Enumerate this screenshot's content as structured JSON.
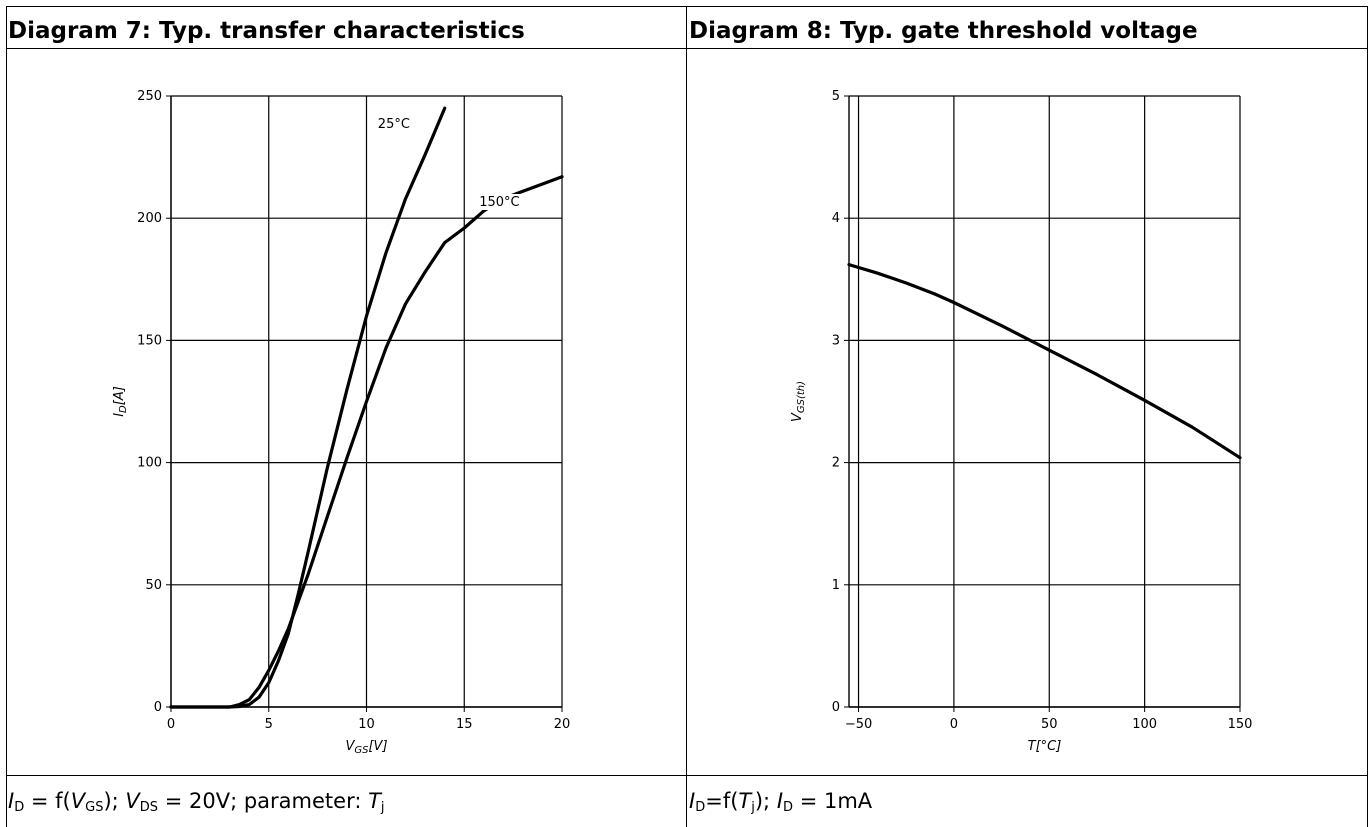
{
  "panels": [
    {
      "title": "Diagram 7: Typ. transfer characteristics",
      "caption": {
        "a": "I",
        "a_sub": "D",
        "b": " = f(",
        "c": "V",
        "c_sub": "GS",
        "d": "); ",
        "e": "V",
        "e_sub": "DS",
        "f": " = 20V; parameter: ",
        "g": "T",
        "g_sub": "j"
      }
    },
    {
      "title": "Diagram 8: Typ. gate threshold voltage",
      "caption": {
        "a": "I",
        "a_sub": "D",
        "b": "=f(",
        "c": "T",
        "c_sub": "j",
        "d": "); ",
        "e": "I",
        "e_sub": "D",
        "f": " = 1mA"
      }
    }
  ],
  "chart_data": [
    {
      "type": "line",
      "xlabel": "V",
      "xlabel_sub": "GS",
      "xlabel_unit": "[V]",
      "ylabel": "I",
      "ylabel_sub": "D",
      "ylabel_unit": "[A]",
      "xlim": [
        0,
        20
      ],
      "ylim": [
        0,
        250
      ],
      "xticks": [
        0,
        5,
        10,
        15,
        20
      ],
      "yticks": [
        0,
        50,
        100,
        150,
        200,
        250
      ],
      "grid": true,
      "series": [
        {
          "name": "25°C",
          "x": [
            0,
            3,
            3.5,
            4,
            4.5,
            5,
            5.5,
            6,
            6.5,
            7,
            8,
            9,
            10,
            11,
            12,
            13,
            14
          ],
          "y": [
            0,
            0,
            0.2,
            1,
            4,
            10,
            19,
            30,
            46,
            63,
            98,
            130,
            160,
            186,
            208,
            226,
            245
          ]
        },
        {
          "name": "150°C",
          "x": [
            0,
            3,
            3.5,
            4,
            4.5,
            5,
            5.5,
            6,
            7,
            8,
            9,
            10,
            11,
            12,
            13,
            14,
            15,
            16,
            17,
            18,
            19,
            20
          ],
          "y": [
            0,
            0,
            1,
            3,
            8,
            15,
            23,
            32,
            54,
            78,
            102,
            125,
            147,
            165,
            178,
            190,
            196,
            203,
            208,
            211,
            214,
            217
          ]
        }
      ],
      "annotations": [
        {
          "text": "25°C",
          "x": 11.4,
          "y": 237
        },
        {
          "text": "150°C",
          "x": 16.8,
          "y": 205
        }
      ]
    },
    {
      "type": "line",
      "xlabel": "T",
      "xlabel_unit": "[°C]",
      "ylabel": "V",
      "ylabel_sub": "GS(th)",
      "xlim": [
        -55,
        150
      ],
      "ylim": [
        0,
        5
      ],
      "xticks": [
        -50,
        0,
        50,
        100,
        150
      ],
      "yticks": [
        0,
        1,
        2,
        3,
        4,
        5
      ],
      "grid": true,
      "series": [
        {
          "x": [
            -55,
            -40,
            -25,
            -10,
            0,
            25,
            50,
            75,
            100,
            125,
            150
          ],
          "y": [
            3.62,
            3.55,
            3.47,
            3.38,
            3.31,
            3.12,
            2.92,
            2.72,
            2.51,
            2.29,
            2.04
          ]
        }
      ]
    }
  ]
}
